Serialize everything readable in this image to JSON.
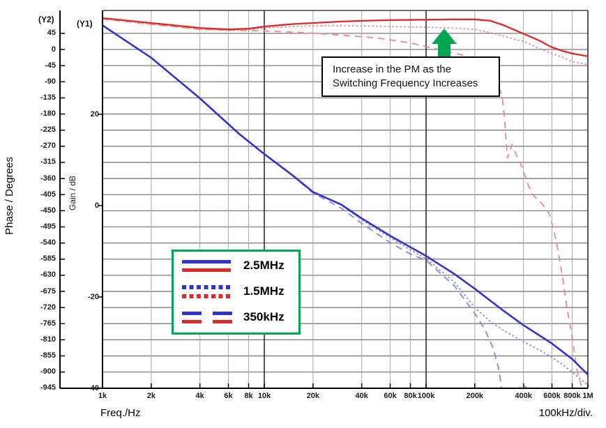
{
  "palette": {
    "blue": "#3232cd",
    "blue_light": "#8a8ae0",
    "red": "#da2a2a",
    "red_light": "#e98f8f",
    "green": "#00a651",
    "grid": "#7b7b7b",
    "grid_minor": "#a8a8a8",
    "grid_major": "#2d2d2d",
    "axis": "#000000"
  },
  "labels": {
    "y2_tag": "(Y2)",
    "y1_tag": "(Y1)",
    "phase_axis_title": "Phase / Degrees",
    "gain_axis_title": "Gain / dB",
    "x_axis_title": "Freq./Hz",
    "x_div_note": "100kHz/div."
  },
  "annotation": {
    "line1": "Increase in the PM as the",
    "line2": "Switching Frequency Increases"
  },
  "legend": {
    "items": [
      {
        "label": "2.5MHz",
        "style": "solid"
      },
      {
        "label": "1.5MHz",
        "style": "dotted"
      },
      {
        "label": "350kHz",
        "style": "dashed"
      }
    ]
  },
  "axes": {
    "phase": {
      "max": 45,
      "min": -945,
      "step": 45,
      "unit": "Degrees"
    },
    "gain": {
      "ticks": [
        20,
        0,
        -20,
        -40
      ],
      "unit": "dB"
    },
    "freq": {
      "ticks": [
        {
          "label": "1k",
          "f": 1000
        },
        {
          "label": "2k",
          "f": 2000
        },
        {
          "label": "4k",
          "f": 4000
        },
        {
          "label": "6k",
          "f": 6000
        },
        {
          "label": "8k",
          "f": 8000
        },
        {
          "label": "10k",
          "f": 10000
        },
        {
          "label": "20k",
          "f": 20000
        },
        {
          "label": "40k",
          "f": 40000
        },
        {
          "label": "60k",
          "f": 60000
        },
        {
          "label": "80k",
          "f": 80000
        },
        {
          "label": "100k",
          "f": 100000
        },
        {
          "label": "200k",
          "f": 200000
        },
        {
          "label": "400k",
          "f": 400000
        },
        {
          "label": "600k",
          "f": 600000
        },
        {
          "label": "800k",
          "f": 800000
        },
        {
          "label": "1M",
          "f": 1000000
        }
      ],
      "major": [
        10000,
        100000,
        1000000
      ]
    }
  },
  "chart_data": {
    "type": "line",
    "x_scale": "log",
    "x_range": [
      1000,
      1000000
    ],
    "gain_range_dB": [
      -40,
      43
    ],
    "phase_range_deg": [
      -945,
      109
    ],
    "grid": true,
    "legend_position": "inside-left-bottom",
    "series": [
      {
        "name": "gain-350kHz",
        "freq_label": "350kHz",
        "axis": "gain",
        "color": "blue_light",
        "dash": "dashed",
        "width": 1.9,
        "points": [
          [
            1000,
            39.5
          ],
          [
            2000,
            32.4
          ],
          [
            4000,
            23.5
          ],
          [
            7000,
            15.7
          ],
          [
            10000,
            11.3
          ],
          [
            15000,
            6.5
          ],
          [
            20000,
            2.8
          ],
          [
            30000,
            -0.6
          ],
          [
            40000,
            -3.9
          ],
          [
            60000,
            -8.1
          ],
          [
            80000,
            -10.6
          ],
          [
            100000,
            -12.0
          ],
          [
            150000,
            -17.6
          ],
          [
            200000,
            -23.6
          ],
          [
            230000,
            -27.0
          ],
          [
            260000,
            -31.2
          ],
          [
            280000,
            -35.5
          ],
          [
            295000,
            -40.5
          ],
          [
            320000,
            -43.5
          ],
          [
            355000,
            -40.6
          ],
          [
            400000,
            -39.3
          ],
          [
            440000,
            -40.6
          ],
          [
            470000,
            -43.5
          ]
        ]
      },
      {
        "name": "gain-1.5MHz",
        "freq_label": "1.5MHz",
        "axis": "gain",
        "color": "blue_light",
        "dash": "dotted",
        "width": 1.9,
        "points": [
          [
            1000,
            39.5
          ],
          [
            2000,
            32.4
          ],
          [
            4000,
            23.5
          ],
          [
            7000,
            15.7
          ],
          [
            10000,
            11.3
          ],
          [
            15000,
            6.6
          ],
          [
            20000,
            3.0
          ],
          [
            30000,
            0.1
          ],
          [
            40000,
            -3.1
          ],
          [
            60000,
            -7.0
          ],
          [
            80000,
            -9.7
          ],
          [
            100000,
            -11.6
          ],
          [
            150000,
            -16.8
          ],
          [
            200000,
            -22.3
          ],
          [
            250000,
            -25.4
          ],
          [
            300000,
            -27.3
          ],
          [
            400000,
            -29.8
          ],
          [
            500000,
            -31.6
          ],
          [
            600000,
            -33.2
          ],
          [
            700000,
            -34.9
          ],
          [
            800000,
            -36.4
          ],
          [
            900000,
            -38.0
          ],
          [
            1000000,
            -39.3
          ]
        ]
      },
      {
        "name": "phase-350kHz",
        "freq_label": "350kHz",
        "axis": "phase",
        "color": "red_light",
        "dash": "dashed",
        "width": 1.9,
        "points": [
          [
            1000,
            85
          ],
          [
            2000,
            70
          ],
          [
            4000,
            56
          ],
          [
            6000,
            54
          ],
          [
            8000,
            52.5
          ],
          [
            10000,
            51.5
          ],
          [
            15000,
            48.5
          ],
          [
            21000,
            45
          ],
          [
            30000,
            40
          ],
          [
            50000,
            32
          ],
          [
            80000,
            18
          ],
          [
            110000,
            4
          ],
          [
            135000,
            -5
          ],
          [
            176000,
            -18
          ],
          [
            210000,
            -30
          ],
          [
            250000,
            -60
          ],
          [
            275000,
            -95
          ],
          [
            295000,
            -128
          ],
          [
            305000,
            -190
          ],
          [
            312000,
            -250
          ],
          [
            318000,
            -303
          ],
          [
            340000,
            -266
          ],
          [
            365000,
            -300
          ],
          [
            388000,
            -323
          ],
          [
            430000,
            -380
          ],
          [
            460000,
            -407
          ],
          [
            520000,
            -430
          ],
          [
            580000,
            -459
          ],
          [
            640000,
            -537
          ],
          [
            700000,
            -640
          ],
          [
            730000,
            -700
          ],
          [
            795000,
            -796
          ],
          [
            860000,
            -900
          ],
          [
            940000,
            -960
          ]
        ]
      },
      {
        "name": "phase-1.5MHz",
        "freq_label": "1.5MHz",
        "axis": "phase",
        "color": "red_light",
        "dash": "dotted",
        "width": 1.9,
        "points": [
          [
            1000,
            86
          ],
          [
            2000,
            71
          ],
          [
            3000,
            63
          ],
          [
            4000,
            57
          ],
          [
            6000,
            53
          ],
          [
            8000,
            55
          ],
          [
            10000,
            60
          ],
          [
            15000,
            64
          ],
          [
            20000,
            66
          ],
          [
            30000,
            67
          ],
          [
            40000,
            66
          ],
          [
            60000,
            64
          ],
          [
            100000,
            62
          ],
          [
            150000,
            60
          ],
          [
            200000,
            56
          ],
          [
            250000,
            47
          ],
          [
            300000,
            38
          ],
          [
            350000,
            29
          ],
          [
            400000,
            23
          ],
          [
            500000,
            3
          ],
          [
            600000,
            -11
          ],
          [
            700000,
            -22
          ],
          [
            800000,
            -34
          ],
          [
            1000000,
            -42
          ]
        ]
      },
      {
        "name": "gain-2.5MHz",
        "freq_label": "2.5MHz",
        "axis": "gain",
        "color": "blue",
        "dash": "solid",
        "width": 2.6,
        "points": [
          [
            1000,
            39.5
          ],
          [
            2000,
            32.4
          ],
          [
            4000,
            23.5
          ],
          [
            7000,
            15.7
          ],
          [
            10000,
            11.3
          ],
          [
            15000,
            6.6
          ],
          [
            20000,
            3.0
          ],
          [
            30000,
            0.2
          ],
          [
            40000,
            -2.8
          ],
          [
            60000,
            -6.6
          ],
          [
            80000,
            -9.1
          ],
          [
            100000,
            -11.0
          ],
          [
            150000,
            -15.0
          ],
          [
            200000,
            -18.2
          ],
          [
            300000,
            -23.0
          ],
          [
            400000,
            -26.2
          ],
          [
            500000,
            -28.4
          ],
          [
            600000,
            -30.2
          ],
          [
            800000,
            -33.6
          ],
          [
            1000000,
            -37.0
          ]
        ]
      },
      {
        "name": "phase-2.5MHz",
        "freq_label": "2.5MHz",
        "axis": "phase",
        "color": "red",
        "dash": "solid",
        "width": 2.3,
        "points": [
          [
            1000,
            87.5
          ],
          [
            2000,
            74
          ],
          [
            3000,
            66
          ],
          [
            4000,
            60
          ],
          [
            6000,
            56
          ],
          [
            8000,
            58
          ],
          [
            10000,
            64
          ],
          [
            15000,
            71
          ],
          [
            20000,
            74
          ],
          [
            30000,
            78
          ],
          [
            40000,
            80
          ],
          [
            60000,
            82
          ],
          [
            100000,
            83
          ],
          [
            150000,
            84
          ],
          [
            200000,
            84
          ],
          [
            250000,
            80
          ],
          [
            300000,
            68
          ],
          [
            350000,
            55
          ],
          [
            400000,
            44
          ],
          [
            500000,
            25
          ],
          [
            600000,
            6
          ],
          [
            700000,
            -4
          ],
          [
            800000,
            -11
          ],
          [
            1000000,
            -19
          ]
        ]
      }
    ]
  }
}
